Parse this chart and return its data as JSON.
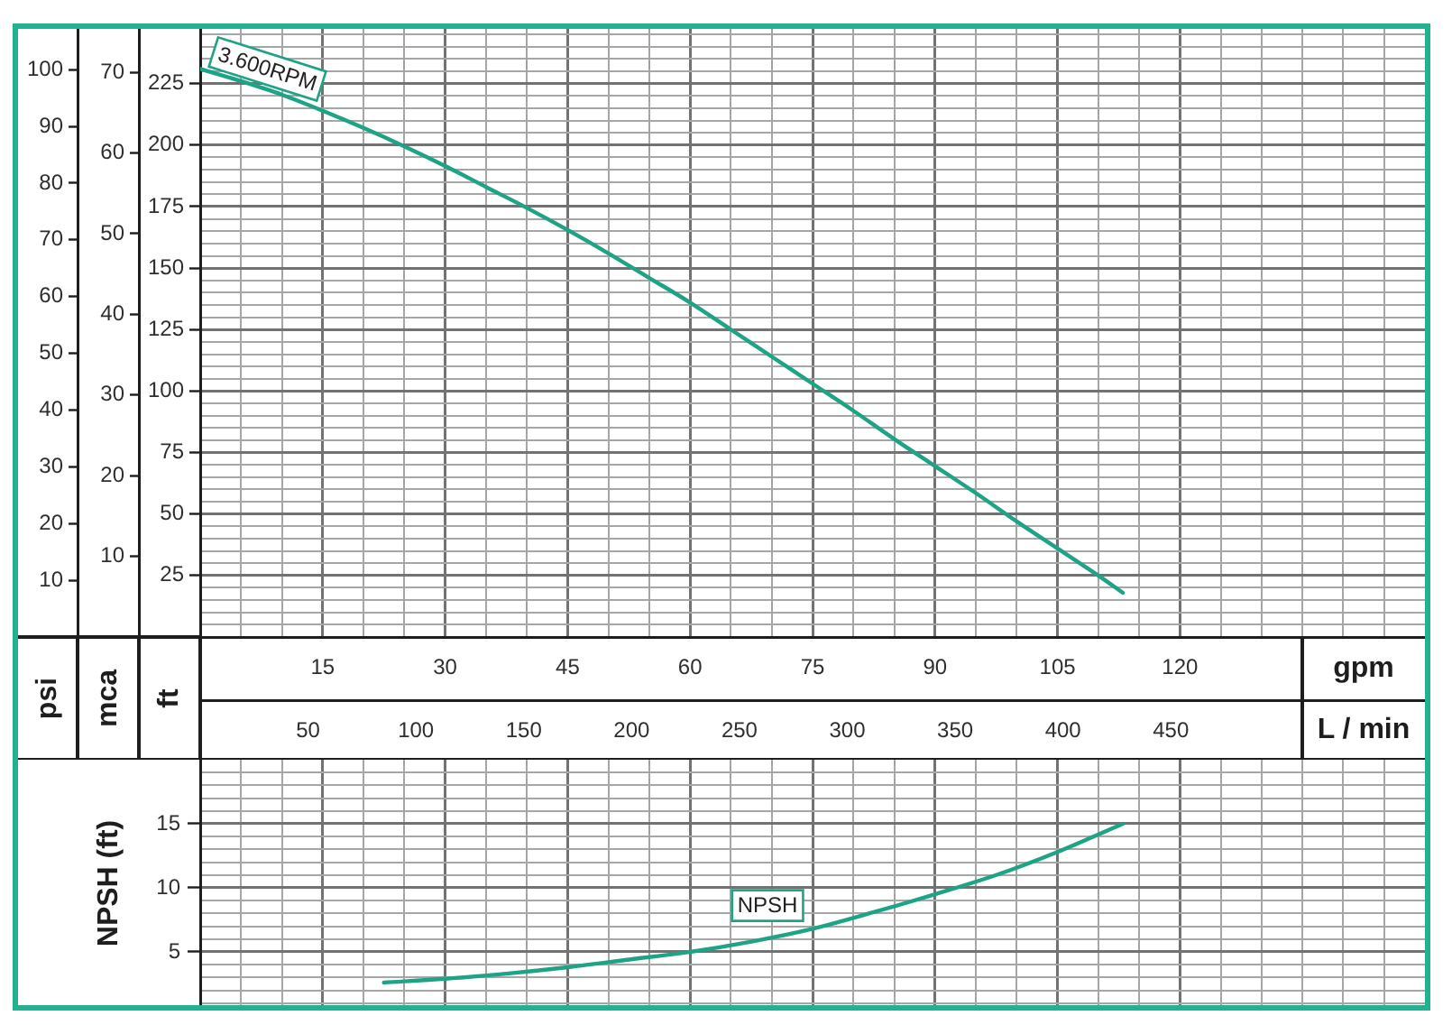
{
  "chart_data": [
    {
      "type": "line",
      "xlabel": "gpm",
      "x2label": "L / min",
      "ylabel": "ft",
      "y2label": "mca",
      "y3label": "psi",
      "grid": true,
      "xlim": [
        0,
        150
      ],
      "xticks": [
        {
          "value": 5,
          "label": null
        },
        {
          "value": 10,
          "label": null
        },
        15,
        {
          "value": 20,
          "label": null
        },
        {
          "value": 25,
          "label": null
        },
        30,
        {
          "value": 35,
          "label": null
        },
        {
          "value": 40,
          "label": null
        },
        45,
        {
          "value": 50,
          "label": null
        },
        {
          "value": 55,
          "label": null
        },
        60,
        {
          "value": 65,
          "label": null
        },
        {
          "value": 70,
          "label": null
        },
        75,
        {
          "value": 80,
          "label": null
        },
        {
          "value": 85,
          "label": null
        },
        90,
        {
          "value": 95,
          "label": null
        },
        {
          "value": 100,
          "label": null
        },
        105,
        {
          "value": 110,
          "label": null
        },
        {
          "value": 115,
          "label": null
        },
        120,
        {
          "value": 125,
          "label": null
        },
        {
          "value": 130,
          "label": null
        },
        {
          "value": 135,
          "label": null
        },
        {
          "value": 140,
          "label": null
        },
        {
          "value": 145,
          "label": null
        }
      ],
      "x2lim": [
        0,
        567.8
      ],
      "x2ticks": [
        50,
        100,
        150,
        200,
        250,
        300,
        350,
        400,
        450
      ],
      "ylim": [
        0,
        248
      ],
      "yticks": [
        {
          "value": 5,
          "label": null
        },
        {
          "value": 10,
          "label": null
        },
        {
          "value": 15,
          "label": null
        },
        {
          "value": 20,
          "label": null
        },
        25,
        {
          "value": 30,
          "label": null
        },
        {
          "value": 35,
          "label": null
        },
        {
          "value": 40,
          "label": null
        },
        {
          "value": 45,
          "label": null
        },
        50,
        {
          "value": 55,
          "label": null
        },
        {
          "value": 60,
          "label": null
        },
        {
          "value": 65,
          "label": null
        },
        {
          "value": 70,
          "label": null
        },
        75,
        {
          "value": 80,
          "label": null
        },
        {
          "value": 85,
          "label": null
        },
        {
          "value": 90,
          "label": null
        },
        {
          "value": 95,
          "label": null
        },
        100,
        {
          "value": 105,
          "label": null
        },
        {
          "value": 110,
          "label": null
        },
        {
          "value": 115,
          "label": null
        },
        {
          "value": 120,
          "label": null
        },
        125,
        {
          "value": 130,
          "label": null
        },
        {
          "value": 135,
          "label": null
        },
        {
          "value": 140,
          "label": null
        },
        {
          "value": 145,
          "label": null
        },
        150,
        {
          "value": 155,
          "label": null
        },
        {
          "value": 160,
          "label": null
        },
        {
          "value": 165,
          "label": null
        },
        {
          "value": 170,
          "label": null
        },
        175,
        {
          "value": 180,
          "label": null
        },
        {
          "value": 185,
          "label": null
        },
        {
          "value": 190,
          "label": null
        },
        {
          "value": 195,
          "label": null
        },
        200,
        {
          "value": 205,
          "label": null
        },
        {
          "value": 210,
          "label": null
        },
        {
          "value": 215,
          "label": null
        },
        {
          "value": 220,
          "label": null
        },
        225,
        {
          "value": 230,
          "label": null
        },
        {
          "value": 235,
          "label": null
        },
        {
          "value": 240,
          "label": null
        },
        {
          "value": 245,
          "label": null
        }
      ],
      "y2lim": [
        0,
        75.6
      ],
      "y2ticks": [
        10,
        20,
        30,
        40,
        50,
        60,
        70
      ],
      "y3lim": [
        0,
        107.5
      ],
      "y3ticks": [
        10,
        20,
        30,
        40,
        50,
        60,
        70,
        80,
        90,
        100
      ],
      "x": [
        0,
        5,
        10,
        15,
        20,
        25,
        30,
        35,
        40,
        45,
        50,
        55,
        60,
        65,
        70,
        75,
        80,
        85,
        90,
        95,
        100,
        105,
        110,
        113
      ],
      "series": [
        {
          "name": "3.600RPM",
          "color": "#1fa386",
          "values": [
            231,
            226,
            220.5,
            214,
            207,
            199.5,
            191.5,
            183,
            174.5,
            165.5,
            156,
            146,
            136,
            125,
            114,
            103,
            92,
            80.5,
            69.5,
            58.5,
            47,
            36,
            25,
            18
          ]
        }
      ]
    },
    {
      "type": "line",
      "ylabel": "NPSH (ft)",
      "grid": true,
      "tick_labels": "y",
      "xlim": [
        0,
        150
      ],
      "xticks": [
        {
          "value": 5,
          "label": null
        },
        {
          "value": 10,
          "label": null
        },
        15,
        {
          "value": 20,
          "label": null
        },
        {
          "value": 25,
          "label": null
        },
        30,
        {
          "value": 35,
          "label": null
        },
        {
          "value": 40,
          "label": null
        },
        45,
        {
          "value": 50,
          "label": null
        },
        {
          "value": 55,
          "label": null
        },
        60,
        {
          "value": 65,
          "label": null
        },
        {
          "value": 70,
          "label": null
        },
        75,
        {
          "value": 80,
          "label": null
        },
        {
          "value": 85,
          "label": null
        },
        90,
        {
          "value": 95,
          "label": null
        },
        {
          "value": 100,
          "label": null
        },
        105,
        {
          "value": 110,
          "label": null
        },
        {
          "value": 115,
          "label": null
        },
        120,
        {
          "value": 125,
          "label": null
        },
        {
          "value": 130,
          "label": null
        },
        {
          "value": 135,
          "label": null
        },
        {
          "value": 140,
          "label": null
        },
        {
          "value": 145,
          "label": null
        }
      ],
      "ylim": [
        0.7,
        20
      ],
      "yticks": [
        {
          "value": 1,
          "label": null
        },
        {
          "value": 2,
          "label": null
        },
        {
          "value": 3,
          "label": null
        },
        {
          "value": 4,
          "label": null
        },
        5,
        {
          "value": 6,
          "label": null
        },
        {
          "value": 7,
          "label": null
        },
        {
          "value": 8,
          "label": null
        },
        {
          "value": 9,
          "label": null
        },
        10,
        {
          "value": 11,
          "label": null
        },
        {
          "value": 12,
          "label": null
        },
        {
          "value": 13,
          "label": null
        },
        {
          "value": 14,
          "label": null
        },
        15,
        {
          "value": 16,
          "label": null
        },
        {
          "value": 17,
          "label": null
        },
        {
          "value": 18,
          "label": null
        },
        {
          "value": 19,
          "label": null
        }
      ],
      "x": [
        22.5,
        30,
        37.5,
        45,
        52.5,
        60,
        67.5,
        75,
        82.5,
        90,
        97.5,
        105,
        113
      ],
      "series": [
        {
          "name": "NPSH",
          "color": "#1fa386",
          "values": [
            2.6,
            2.9,
            3.3,
            3.8,
            4.4,
            5.0,
            5.8,
            6.8,
            8.1,
            9.5,
            11.0,
            12.8,
            15.0
          ]
        }
      ]
    }
  ]
}
